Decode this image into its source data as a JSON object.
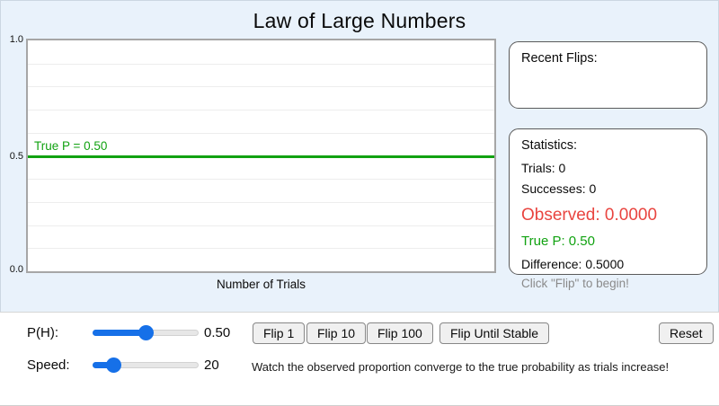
{
  "title": "Law of Large Numbers",
  "colors": {
    "green": "#11a211",
    "red": "#e94540",
    "slider_blue": "#1670e8",
    "panel_blue": "#e9f2fb"
  },
  "chart": {
    "x_label": "Number of Trials",
    "y_ticks": {
      "top": "1.0",
      "mid": "0.5",
      "bottom": "0.0"
    },
    "true_p_label": "True P = 0.50",
    "true_p_value": 0.5,
    "y_range": [
      0.0,
      1.0
    ],
    "series_points": []
  },
  "recent_flips": {
    "title": "Recent Flips:",
    "flips": []
  },
  "statistics": {
    "title": "Statistics:",
    "trials": "Trials: 0",
    "successes": "Successes: 0",
    "observed": "Observed: 0.0000",
    "true_p": "True P: 0.50",
    "difference": "Difference: 0.5000",
    "hint": "Click \"Flip\" to begin!"
  },
  "controls": {
    "ph_label": "P(H):",
    "ph_value": "0.50",
    "ph_percent": 50,
    "speed_label": "Speed:",
    "speed_value": "20",
    "speed_percent": 20,
    "buttons": {
      "flip1": "Flip 1",
      "flip10": "Flip 10",
      "flip100": "Flip 100",
      "flip_until_stable": "Flip Until Stable",
      "reset": "Reset"
    },
    "hint": "Watch the observed proportion converge to the true probability as trials increase!"
  }
}
